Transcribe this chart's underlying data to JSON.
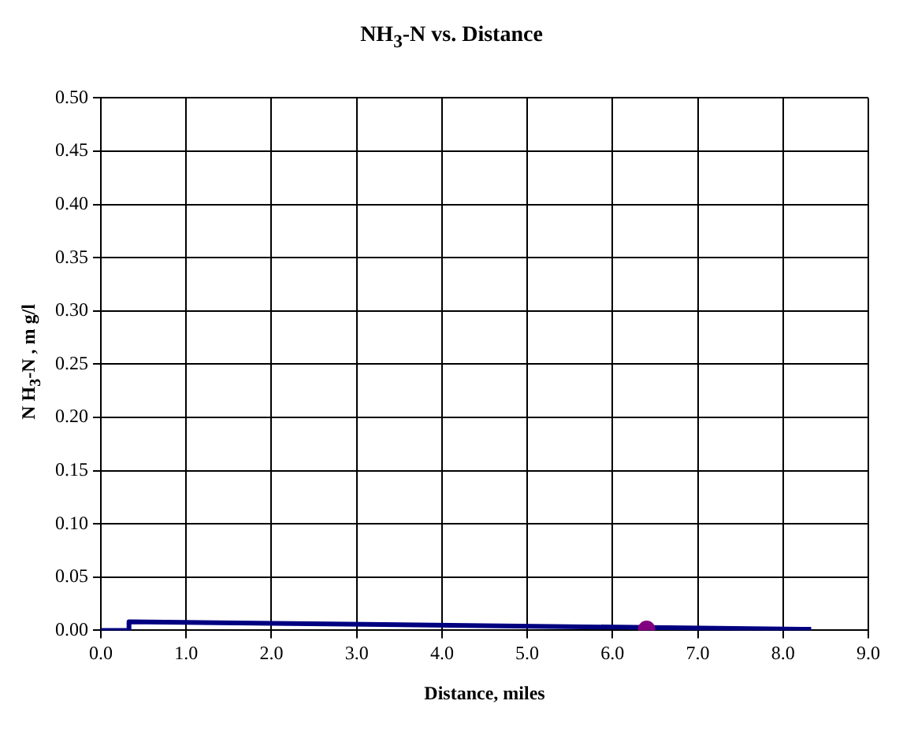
{
  "chart_data": {
    "type": "line",
    "title": "NH$_{3}$-N vs. Distance",
    "xlabel": "Distance, miles",
    "ylabel": "N H$_{3}$-N ,  m g/l",
    "series": [
      {
        "color": "#000080",
        "x": [
          0,
          0.33,
          0.33,
          8.33
        ],
        "values": [
          0,
          0,
          0.008,
          0.001
        ]
      },
      {
        "type": "scatter",
        "color": "#800080",
        "x": [
          6.4
        ],
        "values": [
          0.001
        ]
      }
    ],
    "xlim": [
      0,
      9
    ],
    "xticks": [
      {
        "value": 0,
        "label": "0.0"
      },
      {
        "value": 1,
        "label": "1.0"
      },
      {
        "value": 2,
        "label": "2.0"
      },
      {
        "value": 3,
        "label": "3.0"
      },
      {
        "value": 4,
        "label": "4.0"
      },
      {
        "value": 5,
        "label": "5.0"
      },
      {
        "value": 6,
        "label": "6.0"
      },
      {
        "value": 7,
        "label": "7.0"
      },
      {
        "value": 8,
        "label": "8.0"
      },
      {
        "value": 9,
        "label": "9.0"
      }
    ],
    "ylim": [
      0,
      0.5
    ],
    "yticks": [
      {
        "value": 0,
        "label": "0.00"
      },
      {
        "value": 0.05,
        "label": "0.05"
      },
      {
        "value": 0.1,
        "label": "0.10"
      },
      {
        "value": 0.15,
        "label": "0.15"
      },
      {
        "value": 0.2,
        "label": "0.20"
      },
      {
        "value": 0.25,
        "label": "0.25"
      },
      {
        "value": 0.3,
        "label": "0.30"
      },
      {
        "value": 0.35,
        "label": "0.35"
      },
      {
        "value": 0.4,
        "label": "0.40"
      },
      {
        "value": 0.45,
        "label": "0.45"
      },
      {
        "value": 0.5,
        "label": "0.50"
      }
    ],
    "grid": true,
    "legend": false
  }
}
